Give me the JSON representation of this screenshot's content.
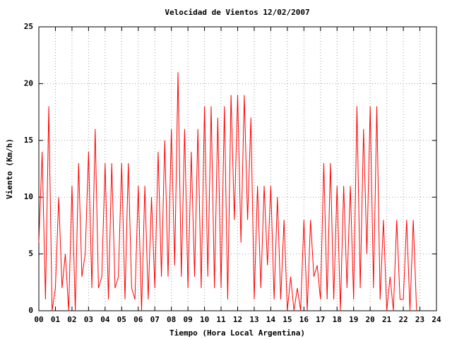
{
  "chart_data": {
    "type": "line",
    "title": "Velocidad de Vientos 12/02/2007",
    "xlabel": "Tiempo (Hora Local Argentina)",
    "ylabel": "Viento (Km/h)",
    "x": [
      0,
      0.2,
      0.4,
      0.6,
      0.8,
      1,
      1.2,
      1.4,
      1.6,
      1.8,
      2,
      2.2,
      2.4,
      2.6,
      2.8,
      3,
      3.2,
      3.4,
      3.6,
      3.8,
      4,
      4.2,
      4.4,
      4.6,
      4.8,
      5,
      5.2,
      5.4,
      5.6,
      5.8,
      6,
      6.2,
      6.4,
      6.6,
      6.8,
      7,
      7.2,
      7.4,
      7.6,
      7.8,
      8,
      8.2,
      8.4,
      8.6,
      8.8,
      9,
      9.2,
      9.4,
      9.6,
      9.8,
      10,
      10.2,
      10.4,
      10.6,
      10.8,
      11,
      11.2,
      11.4,
      11.6,
      11.8,
      12,
      12.2,
      12.4,
      12.6,
      12.8,
      13,
      13.2,
      13.4,
      13.6,
      13.8,
      14,
      14.2,
      14.4,
      14.6,
      14.8,
      15,
      15.2,
      15.4,
      15.6,
      15.8,
      16,
      16.2,
      16.4,
      16.6,
      16.8,
      17,
      17.2,
      17.4,
      17.6,
      17.8,
      18,
      18.2,
      18.4,
      18.6,
      18.8,
      19,
      19.2,
      19.4,
      19.6,
      19.8,
      20,
      20.2,
      20.4,
      20.6,
      20.8,
      21,
      21.2,
      21.4,
      21.6,
      21.8,
      22,
      22.2,
      22.4,
      22.6,
      22.8
    ],
    "values": [
      6,
      14,
      1,
      18,
      0,
      2,
      10,
      2,
      5,
      0,
      11,
      0,
      13,
      3,
      5,
      14,
      2,
      16,
      2,
      3,
      13,
      1,
      13,
      2,
      3,
      13,
      1,
      13,
      2,
      1,
      11,
      0,
      11,
      1,
      10,
      2,
      14,
      3,
      15,
      3,
      16,
      4,
      21,
      3,
      16,
      2,
      14,
      3,
      16,
      2,
      18,
      3,
      18,
      2,
      17,
      2,
      18,
      1,
      19,
      8,
      19,
      6,
      19,
      8,
      17,
      1,
      11,
      2,
      11,
      4,
      11,
      1,
      10,
      1,
      8,
      0,
      3,
      0,
      2,
      0,
      8,
      0,
      8,
      3,
      4,
      1,
      13,
      1,
      13,
      1,
      11,
      0,
      11,
      2,
      11,
      1,
      18,
      2,
      16,
      5,
      18,
      2,
      18,
      1,
      8,
      0,
      3,
      0,
      8,
      1,
      1,
      8,
      0,
      8,
      0
    ],
    "color": "#ff0000",
    "xlim": [
      0,
      24
    ],
    "ylim": [
      0,
      25
    ],
    "xticks": [
      {
        "value": 0,
        "label": "00"
      },
      {
        "value": 1,
        "label": "01"
      },
      {
        "value": 2,
        "label": "02"
      },
      {
        "value": 3,
        "label": "03"
      },
      {
        "value": 4,
        "label": "04"
      },
      {
        "value": 5,
        "label": "05"
      },
      {
        "value": 6,
        "label": "06"
      },
      {
        "value": 7,
        "label": "07"
      },
      {
        "value": 8,
        "label": "08"
      },
      {
        "value": 9,
        "label": "09"
      },
      10,
      11,
      12,
      13,
      14,
      15,
      16,
      17,
      18,
      19,
      20,
      21,
      22,
      23,
      24
    ],
    "yticks": [
      0,
      5,
      10,
      15,
      20,
      25
    ],
    "grid": true
  }
}
